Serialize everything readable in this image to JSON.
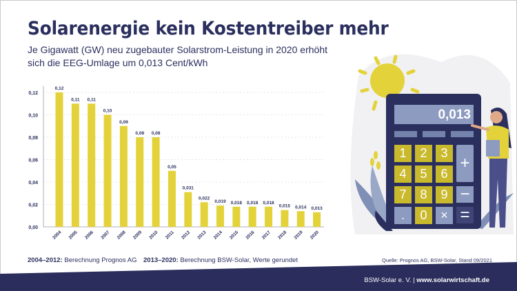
{
  "header": {
    "title": "Solarenergie kein Kostentreiber mehr",
    "subtitle_line1": "Je Gigawatt (GW) neu zugebauter Solarstrom-Leistung in 2020 erhöht",
    "subtitle_line2": "sich die EEG-Umlage um 0,013 Cent/kWh"
  },
  "chart_data": {
    "type": "bar",
    "title": "Solarenergie kein Kostentreiber mehr",
    "xlabel": "",
    "ylabel": "",
    "ylim": [
      0,
      0.12
    ],
    "yticks": [
      "0,00",
      "0,02",
      "0,04",
      "0,06",
      "0,08",
      "0,10",
      "0,12"
    ],
    "grid": true,
    "categories": [
      "2004",
      "2005",
      "2006",
      "2007",
      "2008",
      "2009",
      "2010",
      "2011",
      "2012",
      "2013",
      "2014",
      "2015",
      "2016",
      "2017",
      "2018",
      "2019",
      "2020"
    ],
    "values": [
      0.12,
      0.11,
      0.11,
      0.1,
      0.09,
      0.08,
      0.08,
      0.05,
      0.031,
      0.022,
      0.019,
      0.018,
      0.018,
      0.018,
      0.015,
      0.014,
      0.013
    ],
    "labels": [
      "0,12",
      "0,11",
      "0,11",
      "0,10",
      "0,09",
      "0,08",
      "0,08",
      "0,05",
      "0,031",
      "0,022",
      "0,019",
      "0,018",
      "0,018",
      "0,018",
      "0,015",
      "0,014",
      "0,013"
    ],
    "bar_color": "#e3d23a"
  },
  "notes": {
    "note1_bold": "2004–2012:",
    "note1_text": " Berechnung Prognos AG",
    "note2_bold": "2013–2020:",
    "note2_text": " Berechnung BSW-Solar, Werte gerundet",
    "source": "Quelle: Prognos AG, BSW-Solar, Stand 09/2021"
  },
  "footer": {
    "org": "BSW-Solar e. V. | ",
    "url": "www.solarwirtschaft.de"
  },
  "illustration": {
    "display_value": "0,013",
    "keys": [
      "1",
      "2",
      "3",
      "4",
      "5",
      "6",
      "7",
      "8",
      "9",
      ".",
      "0",
      "×"
    ],
    "op_keys": [
      "+",
      "−",
      "="
    ]
  },
  "colors": {
    "navy": "#2b2f5e",
    "yellow": "#e3d23a",
    "slate": "#8c9bbf"
  }
}
